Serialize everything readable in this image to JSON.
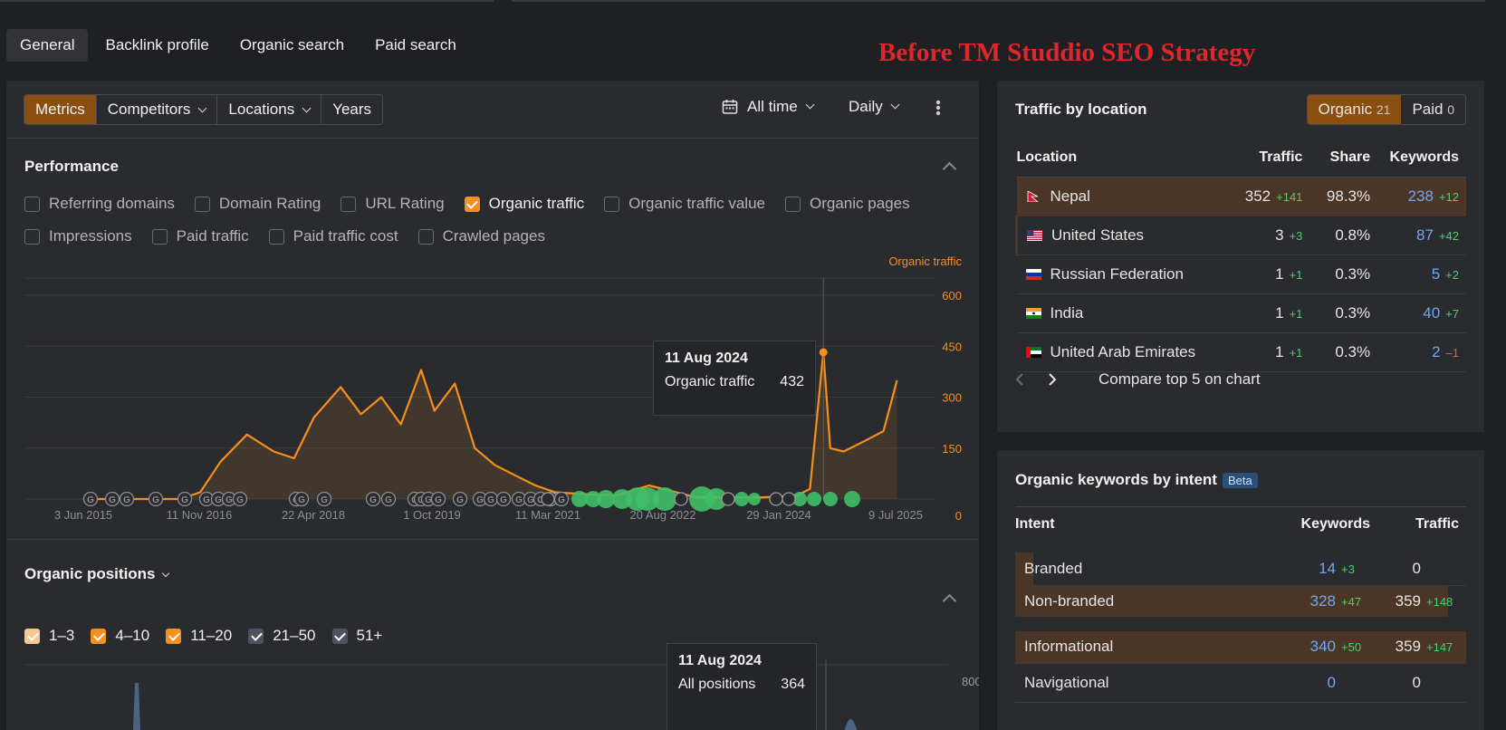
{
  "tabs": [
    "General",
    "Backlink profile",
    "Organic search",
    "Paid search"
  ],
  "overlay_title": "Before TM Studdio SEO Strategy",
  "toolbar": {
    "buttons": [
      "Metrics",
      "Competitors",
      "Locations",
      "Years"
    ],
    "range": "All time",
    "interval": "Daily"
  },
  "performance": {
    "title": "Performance",
    "checkboxes_row1": [
      {
        "label": "Referring domains",
        "checked": false
      },
      {
        "label": "Domain Rating",
        "checked": false
      },
      {
        "label": "URL Rating",
        "checked": false
      },
      {
        "label": "Organic traffic",
        "checked": true
      },
      {
        "label": "Organic traffic value",
        "checked": false
      },
      {
        "label": "Organic pages",
        "checked": false
      }
    ],
    "checkboxes_row2": [
      {
        "label": "Impressions",
        "checked": false
      },
      {
        "label": "Paid traffic",
        "checked": false
      },
      {
        "label": "Paid traffic cost",
        "checked": false
      },
      {
        "label": "Crawled pages",
        "checked": false
      }
    ]
  },
  "chart_data": {
    "type": "area",
    "title": "",
    "series": [
      {
        "name": "Organic traffic",
        "color": "#f5901e"
      }
    ],
    "x_ticks": [
      "3 Jun 2015",
      "11 Nov 2016",
      "22 Apr 2018",
      "1 Oct 2019",
      "11 Mar 2021",
      "20 Aug 2022",
      "29 Jan 2024",
      "9 Jul 2025"
    ],
    "y_ticks": [
      "600",
      "450",
      "300",
      "150",
      "0"
    ],
    "ylim": [
      0,
      600
    ],
    "x": [
      "2015-06",
      "2016-08",
      "2016-11",
      "2017-02",
      "2017-06",
      "2017-10",
      "2018-01",
      "2018-04",
      "2018-08",
      "2018-11",
      "2019-02",
      "2019-05",
      "2019-08",
      "2019-10",
      "2020-01",
      "2020-04",
      "2020-07",
      "2020-10",
      "2021-01",
      "2021-04",
      "2021-08",
      "2022-01",
      "2022-06",
      "2023-01",
      "2023-06",
      "2023-11",
      "2024-04",
      "2024-06",
      "2024-08",
      "2024-09",
      "2024-11",
      "2025-02",
      "2025-05",
      "2025-07"
    ],
    "values": [
      0,
      0,
      20,
      110,
      190,
      140,
      120,
      240,
      330,
      250,
      300,
      220,
      380,
      260,
      340,
      150,
      100,
      70,
      40,
      20,
      15,
      10,
      40,
      5,
      5,
      5,
      10,
      30,
      432,
      150,
      140,
      170,
      200,
      350
    ],
    "tooltip": {
      "date": "11 Aug 2024",
      "label": "Organic traffic",
      "value": "432"
    }
  },
  "organic_positions": {
    "title": "Organic positions",
    "checkboxes": [
      {
        "label": "1–3",
        "style": "light"
      },
      {
        "label": "4–10",
        "style": "orange"
      },
      {
        "label": "11–20",
        "style": "orange"
      },
      {
        "label": "21–50",
        "style": "gray"
      },
      {
        "label": "51+",
        "style": "gray"
      }
    ],
    "y_tick": "800",
    "tooltip": {
      "date": "11 Aug 2024",
      "label": "All positions",
      "value": "364"
    }
  },
  "traffic_by_location": {
    "title": "Traffic by location",
    "toggle": {
      "organic": "Organic",
      "organic_count": "21",
      "paid": "Paid",
      "paid_count": "0"
    },
    "headers": [
      "Location",
      "Traffic",
      "Share",
      "Keywords"
    ],
    "rows": [
      {
        "country": "Nepal",
        "flag": "nepal",
        "traffic": "352",
        "traffic_delta": "+141",
        "share": "98.3%",
        "keywords": "238",
        "kw_delta": "+12",
        "kw_down": false
      },
      {
        "country": "United States",
        "flag": "us",
        "traffic": "3",
        "traffic_delta": "+3",
        "share": "0.8%",
        "keywords": "87",
        "kw_delta": "+42",
        "kw_down": false
      },
      {
        "country": "Russian Federation",
        "flag": "ru",
        "traffic": "1",
        "traffic_delta": "+1",
        "share": "0.3%",
        "keywords": "5",
        "kw_delta": "+2",
        "kw_down": false
      },
      {
        "country": "India",
        "flag": "in",
        "traffic": "1",
        "traffic_delta": "+1",
        "share": "0.3%",
        "keywords": "40",
        "kw_delta": "+7",
        "kw_down": false
      },
      {
        "country": "United Arab Emirates",
        "flag": "ae",
        "traffic": "1",
        "traffic_delta": "+1",
        "share": "0.3%",
        "keywords": "2",
        "kw_delta": "–1",
        "kw_down": true
      }
    ],
    "compare_label": "Compare top 5 on chart"
  },
  "keywords_by_intent": {
    "title": "Organic keywords by intent",
    "badge": "Beta",
    "headers": [
      "Intent",
      "Keywords",
      "Traffic"
    ],
    "rows": [
      {
        "intent": "Branded",
        "keywords": "14",
        "kw_delta": "+3",
        "traffic": "0",
        "traffic_delta": "",
        "share": 0.04
      },
      {
        "intent": "Non-branded",
        "keywords": "328",
        "kw_delta": "+47",
        "traffic": "359",
        "traffic_delta": "+148",
        "share": 0.96
      },
      {
        "intent": "Informational",
        "keywords": "340",
        "kw_delta": "+50",
        "traffic": "359",
        "traffic_delta": "+147",
        "share": 1.0
      },
      {
        "intent": "Navigational",
        "keywords": "0",
        "kw_delta": "",
        "traffic": "0",
        "traffic_delta": "",
        "share": 0
      }
    ]
  }
}
